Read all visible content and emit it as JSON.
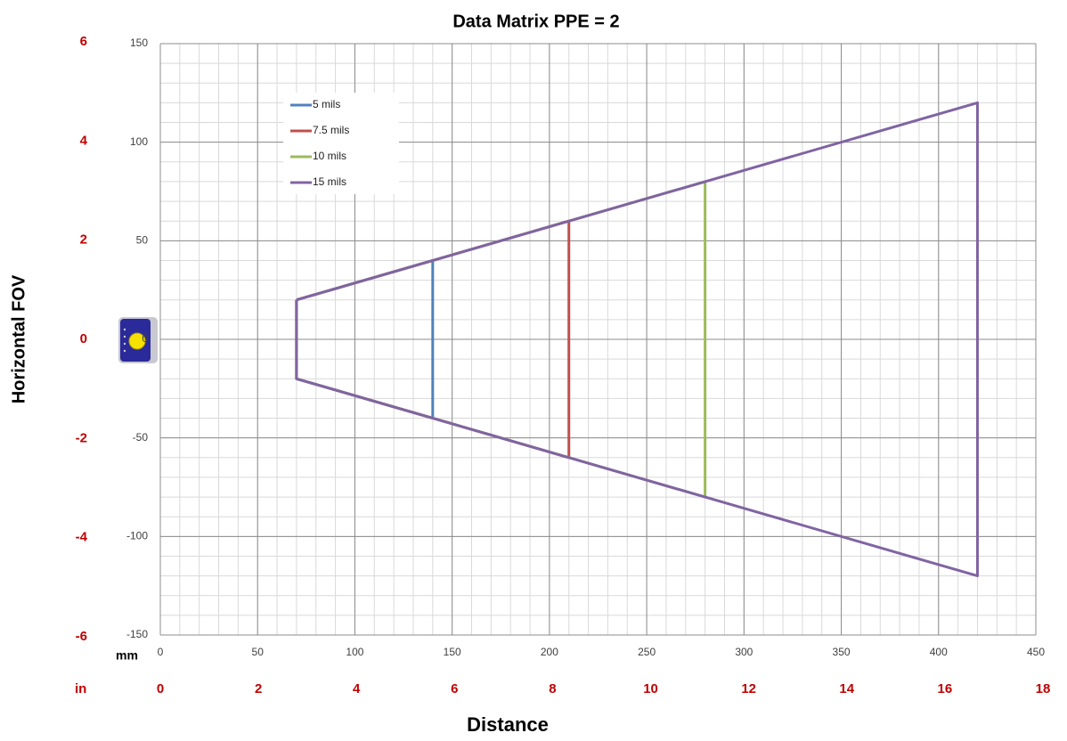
{
  "chart_data": {
    "type": "line",
    "title": "Data Matrix PPE = 2",
    "xlabel": "Distance",
    "ylabel": "Horizontal FOV",
    "x_unit": "mm",
    "x2_unit": "in",
    "xlim": [
      0,
      450
    ],
    "xticks": [
      0,
      50,
      100,
      150,
      200,
      250,
      300,
      350,
      400,
      450
    ],
    "ylim": [
      -150,
      150
    ],
    "yticks": [
      -150,
      -100,
      -50,
      0,
      50,
      100,
      150
    ],
    "x2lim": [
      0,
      18
    ],
    "x2ticks": [
      0,
      2,
      4,
      6,
      8,
      10,
      12,
      14,
      16,
      18
    ],
    "y2lim": [
      -6,
      6
    ],
    "y2ticks": [
      -6,
      -4,
      -2,
      0,
      2,
      4,
      6
    ],
    "grid": true,
    "legend": "upper left",
    "series": [
      {
        "name": "5 mils",
        "color": "#4f81bd",
        "x": [
          70,
          140,
          140,
          70,
          70
        ],
        "values": [
          20,
          40,
          -40,
          -20,
          20
        ]
      },
      {
        "name": "7.5 mils",
        "color": "#c0504d",
        "x": [
          70,
          210,
          210,
          70,
          70
        ],
        "values": [
          20,
          60,
          -60,
          -20,
          20
        ]
      },
      {
        "name": "10 mils",
        "color": "#9bbb59",
        "x": [
          70,
          280,
          280,
          70,
          70
        ],
        "values": [
          20,
          80,
          -80,
          -20,
          20
        ]
      },
      {
        "name": "15 mils",
        "color": "#8064a2",
        "x": [
          70,
          420,
          420,
          70,
          70
        ],
        "values": [
          20,
          120,
          -120,
          -20,
          20
        ]
      }
    ]
  }
}
